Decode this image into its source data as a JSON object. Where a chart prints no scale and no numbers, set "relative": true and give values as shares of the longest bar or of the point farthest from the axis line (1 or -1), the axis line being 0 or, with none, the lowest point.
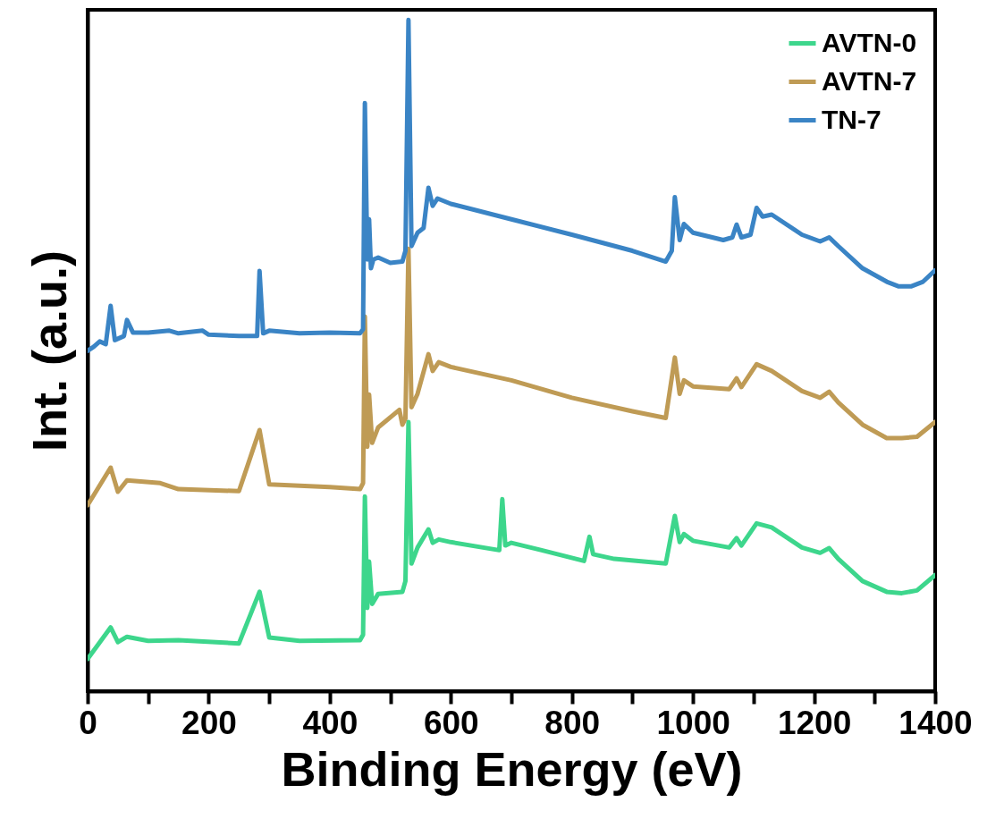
{
  "chart_data": {
    "type": "line",
    "relative": true,
    "xlabel": "Binding Energy (eV)",
    "ylabel": "Int. (a.u.)",
    "xlim": [
      0,
      1400
    ],
    "xticks": [
      0,
      {
        "value": 100,
        "label": null
      },
      200,
      {
        "value": 300,
        "label": null
      },
      400,
      {
        "value": 500,
        "label": null
      },
      600,
      {
        "value": 700,
        "label": null
      },
      800,
      {
        "value": 900,
        "label": null
      },
      1000,
      {
        "value": 1100,
        "label": null
      },
      1200,
      {
        "value": 1300,
        "label": null
      },
      1400
    ],
    "legend": "top right",
    "grid": false,
    "line_style": "solid",
    "series": [
      {
        "name": "AVTN-0",
        "color": "#3dd68c",
        "x": [
          0,
          38,
          50,
          65,
          100,
          150,
          250,
          284,
          300,
          350,
          450,
          455,
          458,
          462,
          465,
          470,
          480,
          520,
          525,
          530,
          535,
          545,
          563,
          570,
          580,
          600,
          680,
          685,
          690,
          700,
          750,
          820,
          829,
          835,
          870,
          955,
          970,
          978,
          985,
          1000,
          1060,
          1072,
          1080,
          1105,
          1130,
          1180,
          1210,
          1225,
          1240,
          1280,
          1320,
          1345,
          1370,
          1400
        ],
        "values": [
          0.048,
          0.095,
          0.073,
          0.081,
          0.075,
          0.076,
          0.071,
          0.148,
          0.08,
          0.075,
          0.076,
          0.084,
          0.29,
          0.124,
          0.193,
          0.13,
          0.145,
          0.148,
          0.164,
          0.401,
          0.19,
          0.214,
          0.241,
          0.221,
          0.226,
          0.222,
          0.21,
          0.286,
          0.217,
          0.221,
          0.21,
          0.194,
          0.23,
          0.204,
          0.197,
          0.19,
          0.261,
          0.222,
          0.234,
          0.224,
          0.214,
          0.228,
          0.217,
          0.25,
          0.244,
          0.214,
          0.206,
          0.213,
          0.197,
          0.164,
          0.148,
          0.146,
          0.15,
          0.173
        ]
      },
      {
        "name": "AVTN-7",
        "color": "#bf9b55",
        "x": [
          0,
          38,
          50,
          65,
          120,
          150,
          250,
          284,
          300,
          400,
          450,
          455,
          458,
          462,
          465,
          470,
          480,
          515,
          520,
          525,
          530,
          535,
          545,
          563,
          570,
          580,
          600,
          700,
          800,
          900,
          955,
          970,
          978,
          985,
          1000,
          1060,
          1072,
          1080,
          1105,
          1130,
          1180,
          1210,
          1225,
          1240,
          1280,
          1320,
          1345,
          1370,
          1400
        ],
        "values": [
          0.277,
          0.333,
          0.297,
          0.314,
          0.31,
          0.301,
          0.298,
          0.389,
          0.308,
          0.304,
          0.301,
          0.31,
          0.558,
          0.364,
          0.442,
          0.37,
          0.393,
          0.419,
          0.397,
          0.406,
          0.659,
          0.423,
          0.443,
          0.502,
          0.477,
          0.49,
          0.483,
          0.463,
          0.437,
          0.417,
          0.407,
          0.497,
          0.443,
          0.463,
          0.454,
          0.45,
          0.466,
          0.453,
          0.487,
          0.477,
          0.447,
          0.437,
          0.446,
          0.43,
          0.397,
          0.377,
          0.377,
          0.379,
          0.401
        ]
      },
      {
        "name": "TN-7",
        "color": "#3a84c5",
        "x": [
          0,
          10,
          20,
          30,
          38,
          45,
          60,
          65,
          75,
          100,
          135,
          150,
          190,
          200,
          250,
          280,
          284,
          290,
          300,
          350,
          400,
          450,
          455,
          458,
          462,
          465,
          468,
          472,
          480,
          500,
          520,
          525,
          530,
          535,
          545,
          555,
          563,
          570,
          578,
          600,
          700,
          800,
          900,
          955,
          965,
          970,
          978,
          985,
          1000,
          1050,
          1065,
          1072,
          1080,
          1095,
          1105,
          1115,
          1130,
          1180,
          1210,
          1225,
          1240,
          1280,
          1320,
          1340,
          1360,
          1380,
          1400
        ],
        "values": [
          0.507,
          0.513,
          0.521,
          0.517,
          0.574,
          0.523,
          0.529,
          0.553,
          0.534,
          0.534,
          0.537,
          0.533,
          0.537,
          0.531,
          0.529,
          0.529,
          0.626,
          0.533,
          0.537,
          0.533,
          0.534,
          0.533,
          0.539,
          0.876,
          0.643,
          0.703,
          0.63,
          0.643,
          0.646,
          0.638,
          0.64,
          0.656,
          1.0,
          0.663,
          0.683,
          0.69,
          0.75,
          0.723,
          0.734,
          0.726,
          0.703,
          0.68,
          0.656,
          0.64,
          0.656,
          0.736,
          0.672,
          0.696,
          0.683,
          0.672,
          0.676,
          0.695,
          0.676,
          0.68,
          0.72,
          0.707,
          0.71,
          0.68,
          0.67,
          0.676,
          0.663,
          0.63,
          0.61,
          0.603,
          0.603,
          0.61,
          0.627
        ]
      }
    ]
  }
}
